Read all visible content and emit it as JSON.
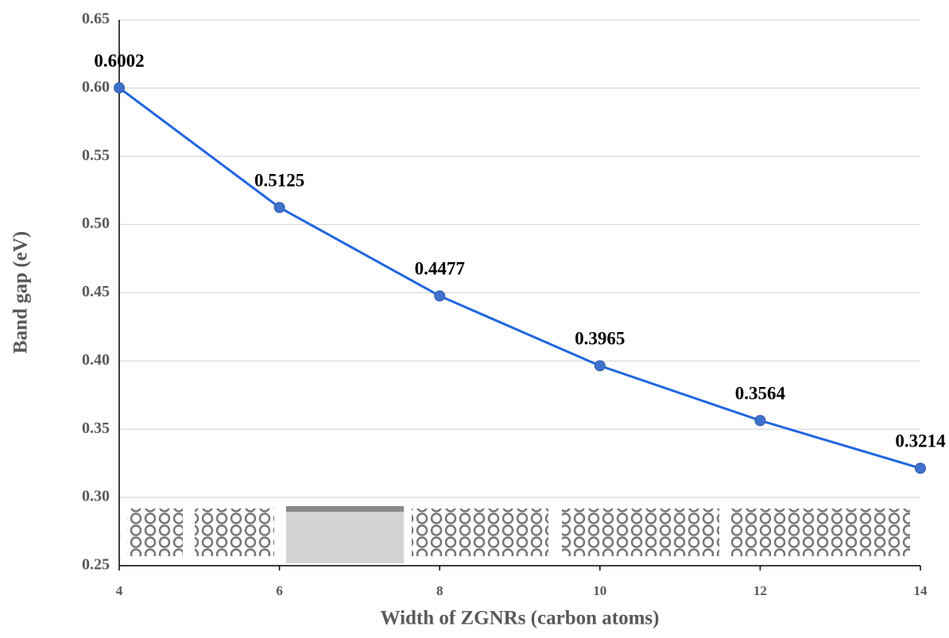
{
  "chart_data": {
    "type": "line",
    "x_label": "Width of ZGNRs (carbon atoms)",
    "y_label": "Band gap (eV)",
    "x": [
      4,
      6,
      8,
      10,
      12,
      14
    ],
    "series": [
      {
        "color": "#1f66e0",
        "marker_color": "#3f72cc",
        "values": [
          0.6002,
          0.5125,
          0.4477,
          0.3965,
          0.3564,
          0.3214
        ]
      }
    ],
    "xlim": [
      4,
      14
    ],
    "xticks": [
      4,
      6,
      8,
      10,
      12,
      14
    ],
    "ylim": [
      0.25,
      0.65
    ],
    "yticks": [
      0.25,
      {
        "value": 0.3,
        "label": "0.30"
      },
      0.35,
      {
        "value": 0.4,
        "label": "0.40"
      },
      0.45,
      {
        "value": 0.5,
        "label": "0.50"
      },
      0.55,
      {
        "value": 0.6,
        "label": "0.60"
      },
      0.65
    ],
    "grid": true
  }
}
